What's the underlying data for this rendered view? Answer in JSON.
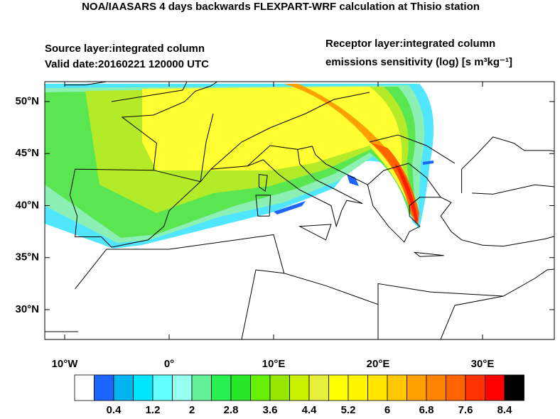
{
  "title": "NOA/IAASARS 4 days backwards FLEXPART-WRF calculation at Thisio station",
  "source_layer": "Source layer:integrated column",
  "valid_date": "Valid date:20160221 120000 UTC",
  "receptor_layer": "Receptor layer:integrated column",
  "units": "emissions sensitivity (log) [s m³kg⁻¹]",
  "lat_ticks": [
    {
      "value": 50,
      "label": "50°N"
    },
    {
      "value": 45,
      "label": "45°N"
    },
    {
      "value": 40,
      "label": "40°N"
    },
    {
      "value": 35,
      "label": "35°N"
    },
    {
      "value": 30,
      "label": "30°N"
    }
  ],
  "lon_ticks": [
    {
      "value": -10,
      "label": "10°W"
    },
    {
      "value": 0,
      "label": "0°"
    },
    {
      "value": 10,
      "label": "10°E"
    },
    {
      "value": 20,
      "label": "20°E"
    },
    {
      "value": 30,
      "label": "30°E"
    }
  ],
  "colorbar": {
    "colors": [
      "#ffffff",
      "#1e64ff",
      "#00b4f0",
      "#00e6ff",
      "#64ffff",
      "#96fff0",
      "#64f096",
      "#28f050",
      "#28e628",
      "#64f000",
      "#96e600",
      "#c8f000",
      "#e6f03c",
      "#ffff00",
      "#fff500",
      "#ffe600",
      "#ffc800",
      "#ffa000",
      "#ff8200",
      "#ff6400",
      "#ff3200",
      "#ff0000",
      "#000000"
    ],
    "labels": [
      0.4,
      1.2,
      2,
      2.8,
      3.6,
      4.4,
      5.2,
      6,
      6.8,
      7.6,
      8.4
    ]
  }
}
